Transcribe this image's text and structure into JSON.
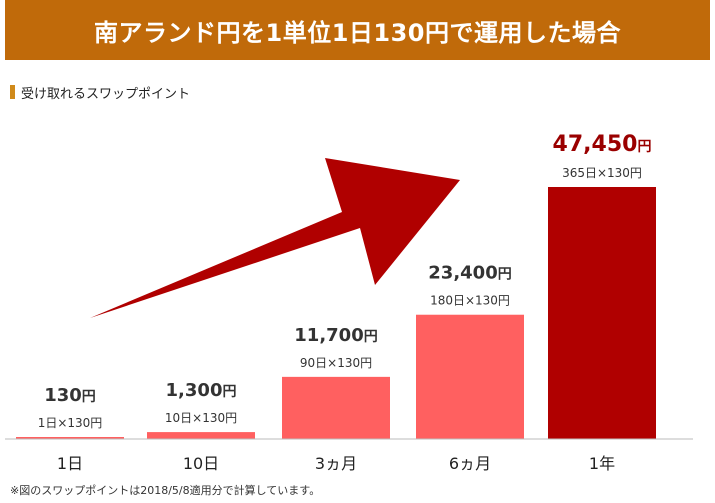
{
  "header": {
    "title": "南アランド円を1単位1日130円で運用した場合",
    "background": "#c06a0a"
  },
  "subtitle": {
    "text": "受け取れるスワップポイント",
    "marker_color": "#d08a1a"
  },
  "colors": {
    "bar_light": "#ff6060",
    "bar_dark": "#b00000",
    "arrow": "#b00000",
    "value_dark": "#9a0000",
    "axis": "#bbbbbb"
  },
  "chart_data": {
    "type": "bar",
    "title": "",
    "categories": [
      "1日",
      "10日",
      "3ヵ月",
      "6ヵ月",
      "1年"
    ],
    "values": [
      130,
      1300,
      11700,
      23400,
      47450
    ],
    "value_labels": [
      "130",
      "1,300",
      "11,700",
      "23,400",
      "47,450"
    ],
    "value_unit": "円",
    "formulas": [
      "1日×130円",
      "10日×130円",
      "90日×130円",
      "180日×130円",
      "365日×130円"
    ],
    "highlight_index": 4,
    "ylim": [
      0,
      47450
    ],
    "grid": false,
    "legend": "none"
  },
  "footnote": "※図のスワップポイントは2018/5/8適用分で計算しています。"
}
